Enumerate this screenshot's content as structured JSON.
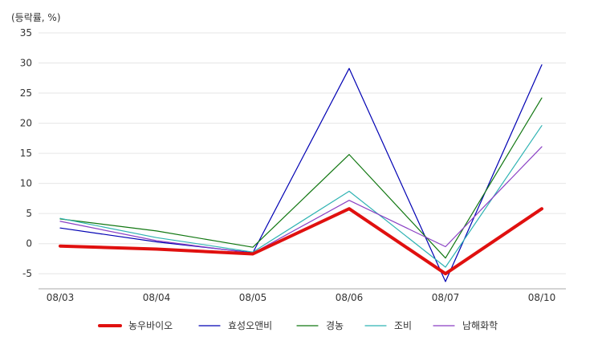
{
  "chart_data": {
    "type": "line",
    "unit_label": "(등락률, %)",
    "categories": [
      "08/03",
      "08/04",
      "08/05",
      "08/06",
      "08/07",
      "08/10"
    ],
    "ylim": [
      -7.5,
      35
    ],
    "y_ticks": [
      35,
      30,
      25,
      20,
      15,
      10,
      5,
      0,
      -5
    ],
    "y_tick_labels": [
      "35",
      "30",
      "25",
      "20",
      "15",
      "10",
      "5",
      "0",
      "-5"
    ],
    "grid": true,
    "legend_position": "bottom",
    "series": [
      {
        "name": "효성오앤비",
        "color": "#0000b3",
        "width": 1.2,
        "values": [
          2.6,
          0.3,
          -1.5,
          29.1,
          -6.3,
          29.7
        ]
      },
      {
        "name": "경농",
        "color": "#117711",
        "width": 1.2,
        "values": [
          4.1,
          2.1,
          -0.6,
          14.8,
          -2.4,
          24.2
        ]
      },
      {
        "name": "조비",
        "color": "#2fb3b3",
        "width": 1.2,
        "values": [
          4.2,
          1.0,
          -1.4,
          8.7,
          -3.9,
          19.6
        ]
      },
      {
        "name": "남해화학",
        "color": "#8a3fc4",
        "width": 1.2,
        "values": [
          3.7,
          0.5,
          -1.6,
          7.2,
          -0.5,
          16.1
        ]
      },
      {
        "name": "농우바이오",
        "color": "#e0100f",
        "width": 4,
        "values": [
          -0.4,
          -0.9,
          -1.7,
          5.8,
          -5.0,
          5.8
        ]
      }
    ],
    "legend_order": [
      "농우바이오",
      "효성오앤비",
      "경농",
      "조비",
      "남해화학"
    ]
  }
}
